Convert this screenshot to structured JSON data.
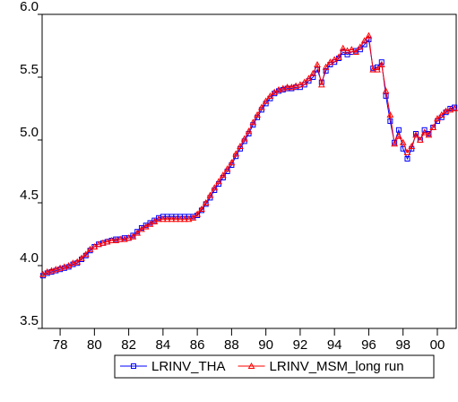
{
  "chart_data": {
    "type": "line",
    "x": [
      1977,
      1977.25,
      1977.5,
      1977.75,
      1978,
      1978.25,
      1978.5,
      1978.75,
      1979,
      1979.25,
      1979.5,
      1979.75,
      1980,
      1980.25,
      1980.5,
      1980.75,
      1981,
      1981.25,
      1981.5,
      1981.75,
      1982,
      1982.25,
      1982.5,
      1982.75,
      1983,
      1983.25,
      1983.5,
      1983.75,
      1984,
      1984.25,
      1984.5,
      1984.75,
      1985,
      1985.25,
      1985.5,
      1985.75,
      1986,
      1986.25,
      1986.5,
      1986.75,
      1987,
      1987.25,
      1987.5,
      1987.75,
      1988,
      1988.25,
      1988.5,
      1988.75,
      1989,
      1989.25,
      1989.5,
      1989.75,
      1990,
      1990.25,
      1990.5,
      1990.75,
      1991,
      1991.25,
      1991.5,
      1991.75,
      1992,
      1992.25,
      1992.5,
      1992.75,
      1993,
      1993.25,
      1993.5,
      1993.75,
      1994,
      1994.25,
      1994.5,
      1994.75,
      1995,
      1995.25,
      1995.5,
      1995.75,
      1996,
      1996.25,
      1996.5,
      1996.75,
      1997,
      1997.25,
      1997.5,
      1997.75,
      1998,
      1998.25,
      1998.5,
      1998.75,
      1999,
      1999.25,
      1999.5,
      1999.75,
      2000,
      2000.25,
      2000.5,
      2000.75,
      2001
    ],
    "series": [
      {
        "name": "LRINV_THA",
        "color": "#0000ff",
        "marker": "square",
        "values": [
          3.92,
          3.94,
          3.95,
          3.96,
          3.97,
          3.98,
          3.99,
          4.01,
          4.02,
          4.05,
          4.08,
          4.12,
          4.15,
          4.17,
          4.18,
          4.19,
          4.2,
          4.21,
          4.21,
          4.22,
          4.22,
          4.24,
          4.27,
          4.3,
          4.32,
          4.34,
          4.36,
          4.38,
          4.39,
          4.39,
          4.39,
          4.39,
          4.39,
          4.39,
          4.39,
          4.39,
          4.4,
          4.44,
          4.49,
          4.54,
          4.6,
          4.65,
          4.7,
          4.75,
          4.8,
          4.87,
          4.93,
          4.99,
          5.05,
          5.12,
          5.18,
          5.24,
          5.29,
          5.33,
          5.37,
          5.39,
          5.4,
          5.41,
          5.41,
          5.42,
          5.42,
          5.44,
          5.47,
          5.5,
          5.56,
          5.46,
          5.55,
          5.6,
          5.62,
          5.65,
          5.7,
          5.68,
          5.7,
          5.71,
          5.72,
          5.76,
          5.8,
          5.57,
          5.58,
          5.62,
          5.35,
          5.15,
          4.98,
          5.08,
          4.93,
          4.85,
          4.93,
          5.05,
          5.0,
          5.08,
          5.05,
          5.1,
          5.15,
          5.18,
          5.22,
          5.25,
          5.26
        ]
      },
      {
        "name": "LRINV_MSM_long run",
        "color": "#ff0000",
        "marker": "triangle",
        "values": [
          3.93,
          3.95,
          3.96,
          3.97,
          3.98,
          3.99,
          4.0,
          4.02,
          4.03,
          4.06,
          4.09,
          4.13,
          4.15,
          4.17,
          4.18,
          4.19,
          4.2,
          4.2,
          4.21,
          4.21,
          4.22,
          4.23,
          4.26,
          4.29,
          4.31,
          4.33,
          4.35,
          4.37,
          4.37,
          4.37,
          4.37,
          4.37,
          4.37,
          4.37,
          4.37,
          4.38,
          4.41,
          4.45,
          4.5,
          4.56,
          4.62,
          4.67,
          4.72,
          4.77,
          4.82,
          4.89,
          4.95,
          5.01,
          5.07,
          5.14,
          5.2,
          5.26,
          5.31,
          5.35,
          5.38,
          5.4,
          5.41,
          5.42,
          5.42,
          5.43,
          5.44,
          5.46,
          5.49,
          5.53,
          5.6,
          5.44,
          5.58,
          5.62,
          5.64,
          5.66,
          5.73,
          5.71,
          5.72,
          5.7,
          5.74,
          5.79,
          5.83,
          5.56,
          5.56,
          5.6,
          5.39,
          5.2,
          4.97,
          5.03,
          4.98,
          4.9,
          4.95,
          5.04,
          5.0,
          5.06,
          5.04,
          5.1,
          5.17,
          5.2,
          5.23,
          5.24,
          5.25
        ]
      }
    ],
    "xlim": [
      1976.95,
      2001.1
    ],
    "xticks": [
      {
        "value": 1978,
        "label": "78"
      },
      {
        "value": 1980,
        "label": "80"
      },
      {
        "value": 1982,
        "label": "82"
      },
      {
        "value": 1984,
        "label": "84"
      },
      {
        "value": 1986,
        "label": "86"
      },
      {
        "value": 1988,
        "label": "88"
      },
      {
        "value": 1990,
        "label": "90"
      },
      {
        "value": 1992,
        "label": "92"
      },
      {
        "value": 1994,
        "label": "94"
      },
      {
        "value": 1996,
        "label": "96"
      },
      {
        "value": 1998,
        "label": "98"
      },
      {
        "value": 2000,
        "label": "00"
      }
    ],
    "ylim": [
      3.5,
      6.0
    ],
    "yticks": [
      3.5,
      {
        "value": 4.0,
        "label": "4.0"
      },
      4.5,
      {
        "value": 5.0,
        "label": "5.0"
      },
      5.5,
      {
        "value": 6.0,
        "label": "6.0"
      }
    ],
    "legend": "bottom"
  }
}
